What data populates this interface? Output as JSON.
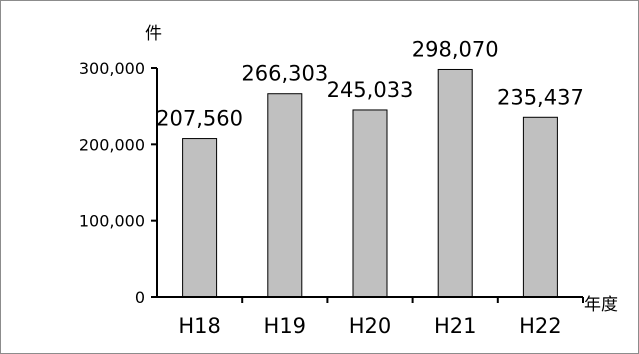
{
  "chart_data": {
    "type": "bar",
    "title": "",
    "ylabel": "件",
    "xlabel": "年度",
    "categories": [
      "H18",
      "H19",
      "H20",
      "H21",
      "H22"
    ],
    "values": [
      207560,
      266303,
      245033,
      298070,
      235437
    ],
    "data_labels": [
      "207,560",
      "266,303",
      "245,033",
      "298,070",
      "235,437"
    ],
    "yticks": [
      0,
      100000,
      200000,
      300000
    ],
    "ytick_labels": [
      "0",
      "100,000",
      "200,000",
      "300,000"
    ],
    "ylim": [
      0,
      300000
    ],
    "grid": false,
    "legend": "none",
    "bar_color": "#c0c0c0",
    "bar_stroke": "#000000"
  }
}
